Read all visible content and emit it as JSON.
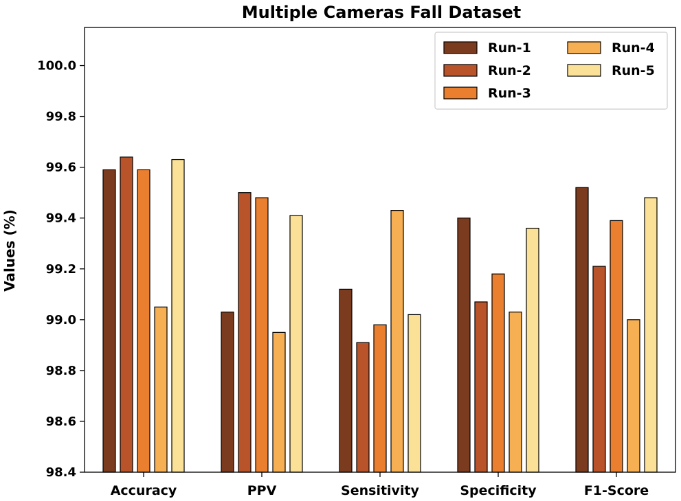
{
  "chart_data": {
    "type": "bar",
    "title": "Multiple Cameras Fall Dataset",
    "xlabel": "",
    "ylabel": "Values (%)",
    "ylim": [
      98.4,
      100.15
    ],
    "yticks": [
      "98.4",
      "98.6",
      "98.8",
      "99.0",
      "99.2",
      "99.4",
      "99.6",
      "99.8",
      "100.0"
    ],
    "categories": [
      "Accuracy",
      "PPV",
      "Sensitivity",
      "Specificity",
      "F1-Score"
    ],
    "series": [
      {
        "name": "Run-1",
        "color": "#7a3b1f",
        "values": [
          99.59,
          99.03,
          99.12,
          99.4,
          99.52
        ]
      },
      {
        "name": "Run-2",
        "color": "#b8532a",
        "values": [
          99.64,
          99.5,
          98.91,
          99.07,
          99.21
        ]
      },
      {
        "name": "Run-3",
        "color": "#e97f2f",
        "values": [
          99.59,
          99.48,
          98.98,
          99.18,
          99.39
        ]
      },
      {
        "name": "Run-4",
        "color": "#f6af53",
        "values": [
          99.05,
          98.95,
          99.43,
          99.03,
          99.0
        ]
      },
      {
        "name": "Run-5",
        "color": "#fbe197",
        "values": [
          99.63,
          99.41,
          99.02,
          99.36,
          99.48
        ]
      }
    ],
    "legend_position": "top-right",
    "grid": false
  }
}
